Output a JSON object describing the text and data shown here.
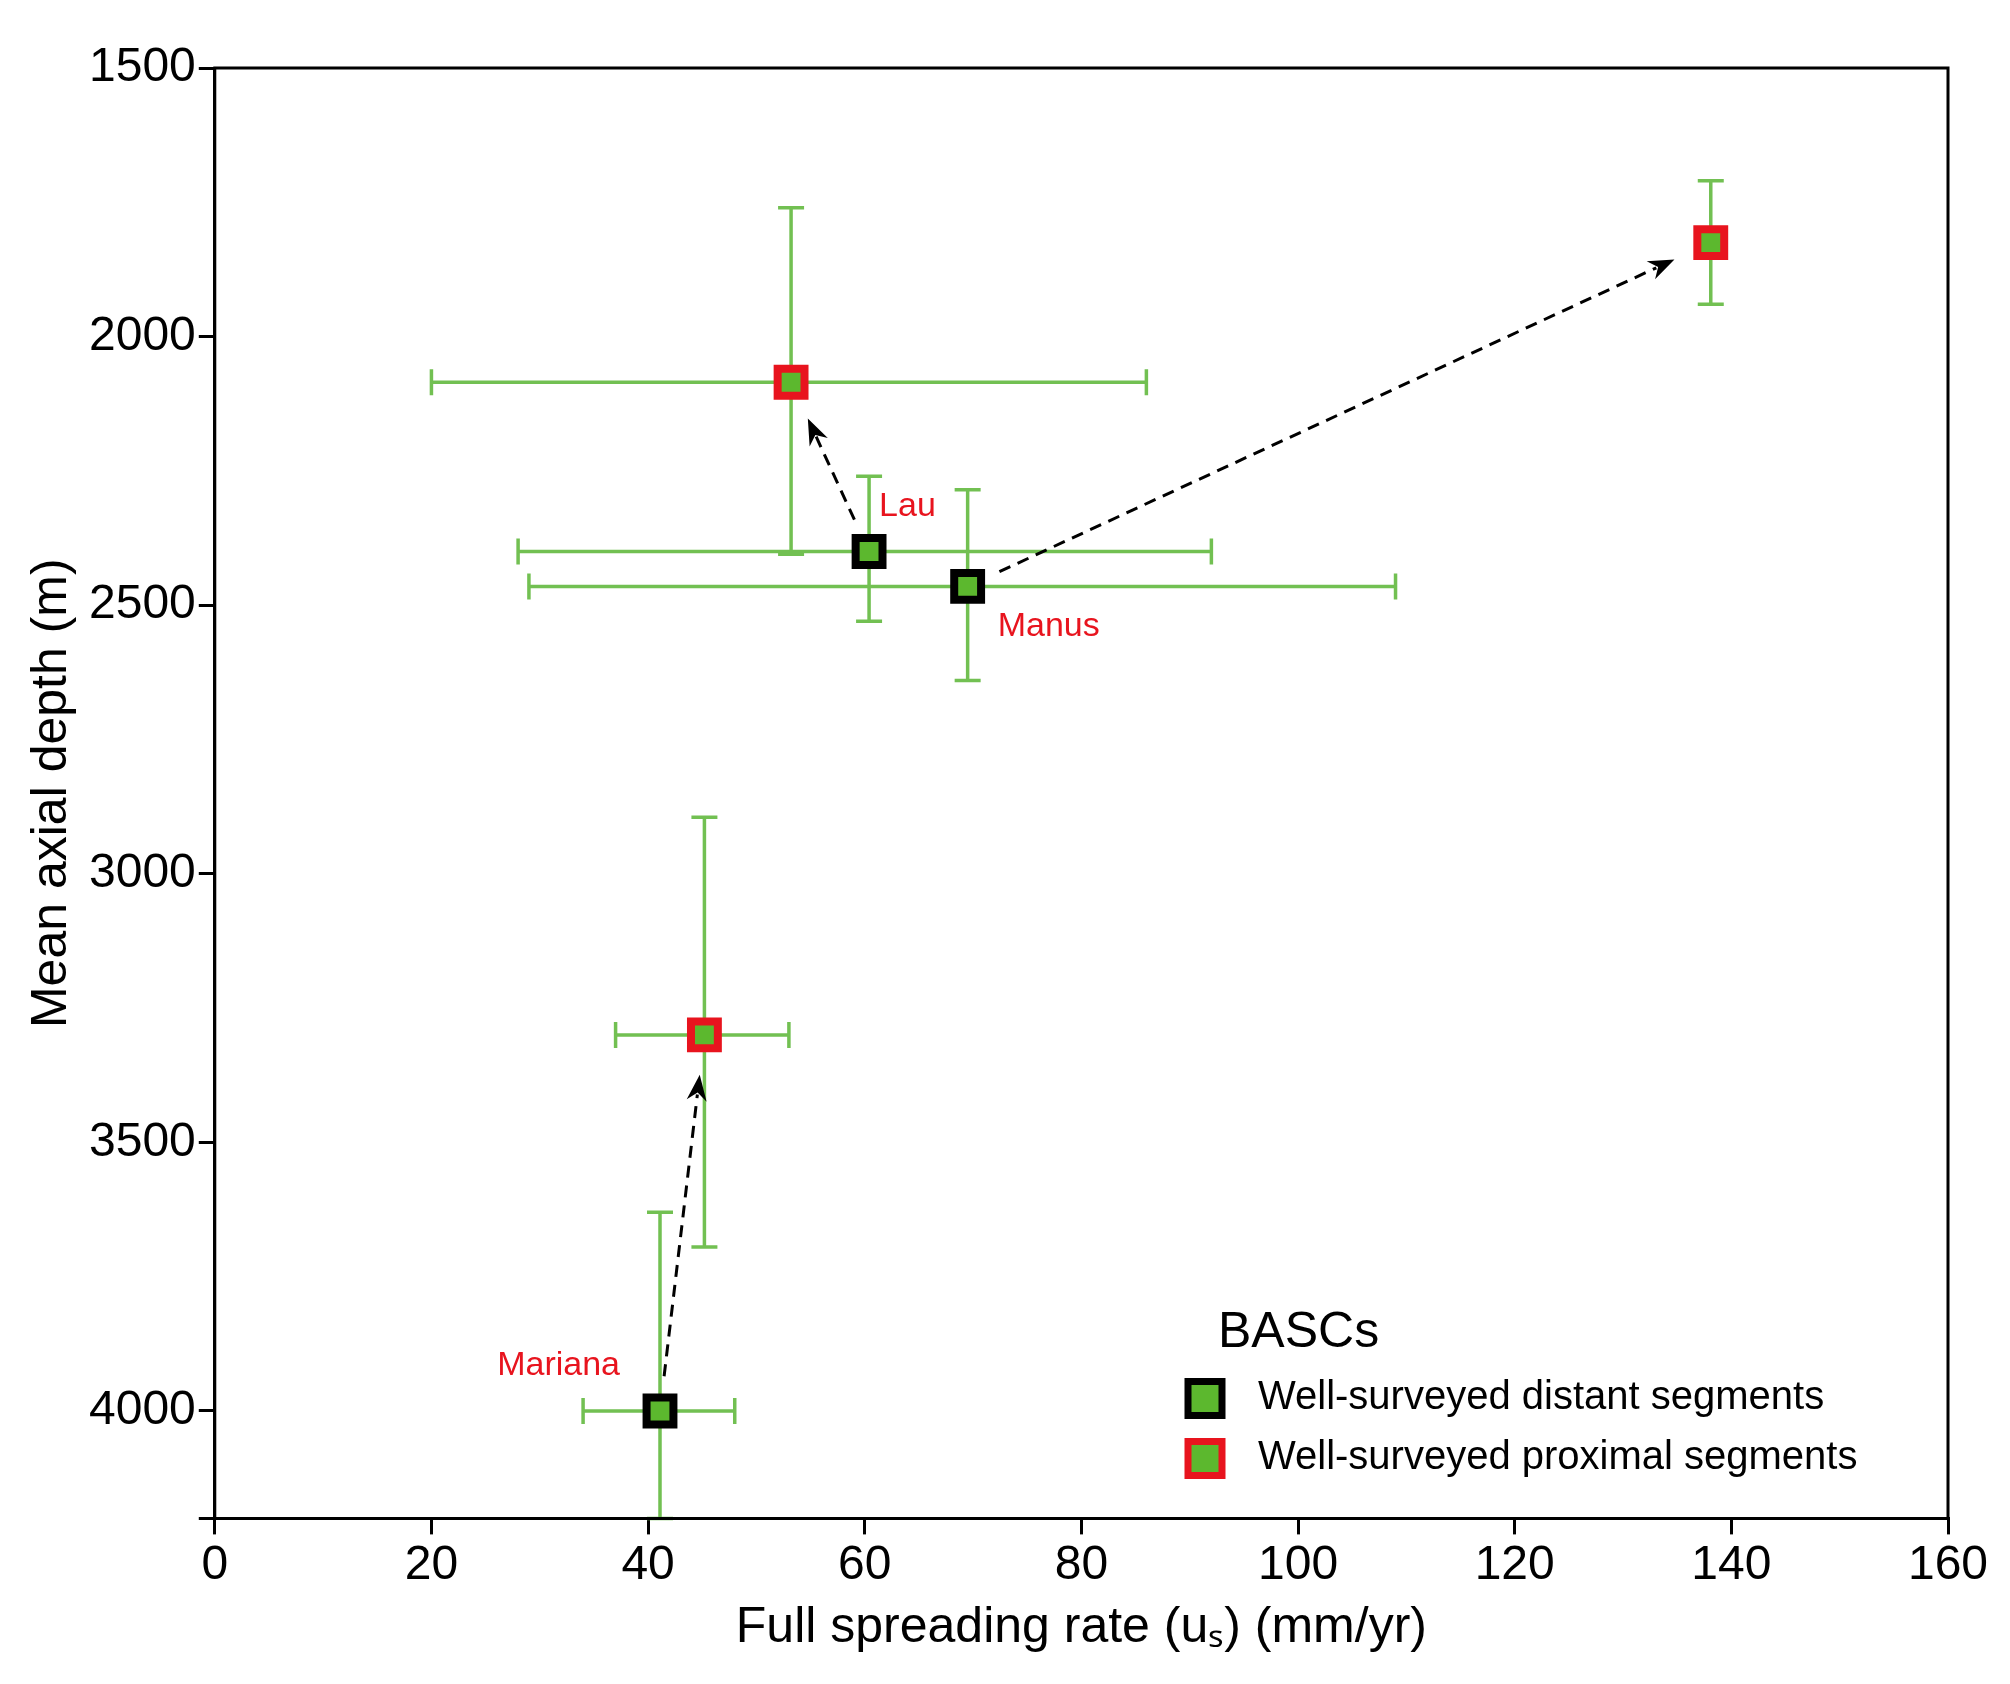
{
  "chart_data": {
    "type": "scatter",
    "xlabel": "Full spreading rate (uₛ) (mm/yr)",
    "ylabel": "Mean axial depth (m)",
    "legend_title": "BASCs",
    "xlim": [
      0,
      160
    ],
    "xticks": [
      0,
      20,
      40,
      60,
      80,
      100,
      120,
      140,
      160
    ],
    "ylim": [
      4200,
      1500
    ],
    "yticks": [
      1500,
      2000,
      2500,
      3000,
      3500,
      4000
    ],
    "grid": false,
    "legend": "bottom right",
    "marker": "square",
    "series": [
      {
        "name": "Well-surveyed distant segments",
        "color": "#000000",
        "x": [
          41.1,
          60.4,
          69.5
        ],
        "values": [
          4000,
          2400,
          2465
        ],
        "xerrors": [
          [
            34,
            48
          ],
          [
            28,
            92
          ],
          [
            29,
            109
          ]
        ],
        "errors": [
          [
            3630,
            4200
          ],
          [
            2260,
            2530
          ],
          [
            2285,
            2640
          ]
        ]
      },
      {
        "name": "Well-surveyed proximal segments",
        "color": "#e8141e",
        "x": [
          45.2,
          53.2,
          138.1
        ],
        "values": [
          3300,
          2085,
          1825
        ],
        "xerrors": [
          [
            37,
            53
          ],
          [
            20,
            86
          ],
          null
        ],
        "errors": [
          [
            2895,
            3695
          ],
          [
            1760,
            2405
          ],
          [
            1710,
            1940
          ]
        ]
      }
    ],
    "annotations": [
      "Mariana",
      "Lau",
      "Manus"
    ]
  }
}
